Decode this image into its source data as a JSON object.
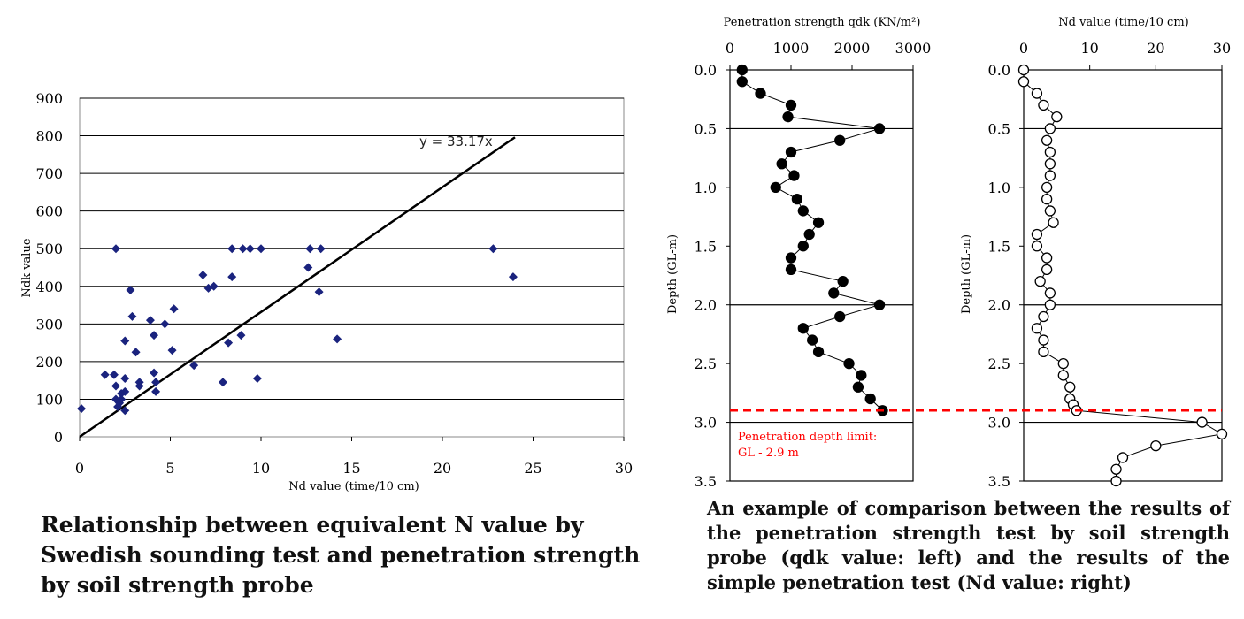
{
  "chart_data": [
    {
      "type": "scatter",
      "caption": "Relationship between equivalent N value by Swedish sounding test and penetration strength by soil strength probe",
      "xlabel": "Nd value (time/10 cm)",
      "ylabel": "Ndk value",
      "xlim": [
        0,
        30
      ],
      "ylim": [
        0,
        900
      ],
      "xticks": [
        "0",
        "5",
        "10",
        "15",
        "20",
        "25",
        "30"
      ],
      "yticks": [
        "0",
        "100",
        "200",
        "300",
        "400",
        "500",
        "600",
        "700",
        "800",
        "900"
      ],
      "grid": "horizontal",
      "trendline": {
        "label": "y = 33.17x",
        "slope": 33.17,
        "x_end": 24
      },
      "marker_color": "#1a237e",
      "points": [
        [
          0.1,
          75
        ],
        [
          1.4,
          165
        ],
        [
          1.9,
          165
        ],
        [
          2.0,
          500
        ],
        [
          2.0,
          135
        ],
        [
          2.0,
          100
        ],
        [
          2.1,
          80
        ],
        [
          2.2,
          90
        ],
        [
          2.3,
          115
        ],
        [
          2.3,
          100
        ],
        [
          2.5,
          70
        ],
        [
          2.5,
          155
        ],
        [
          2.5,
          120
        ],
        [
          2.5,
          255
        ],
        [
          2.8,
          390
        ],
        [
          2.9,
          320
        ],
        [
          3.1,
          225
        ],
        [
          3.3,
          145
        ],
        [
          3.3,
          135
        ],
        [
          3.9,
          310
        ],
        [
          4.1,
          270
        ],
        [
          4.1,
          170
        ],
        [
          4.2,
          145
        ],
        [
          4.2,
          120
        ],
        [
          4.7,
          300
        ],
        [
          5.1,
          230
        ],
        [
          5.2,
          340
        ],
        [
          6.3,
          190
        ],
        [
          6.8,
          430
        ],
        [
          7.1,
          395
        ],
        [
          7.4,
          400
        ],
        [
          7.9,
          145
        ],
        [
          8.2,
          250
        ],
        [
          8.4,
          425
        ],
        [
          8.4,
          500
        ],
        [
          8.9,
          270
        ],
        [
          9.0,
          500
        ],
        [
          9.4,
          500
        ],
        [
          9.8,
          155
        ],
        [
          10.0,
          500
        ],
        [
          12.6,
          450
        ],
        [
          12.7,
          500
        ],
        [
          13.2,
          385
        ],
        [
          13.3,
          500
        ],
        [
          14.2,
          260
        ],
        [
          22.8,
          500
        ],
        [
          23.9,
          425
        ]
      ]
    },
    {
      "type": "line",
      "title": "Penetration strength qdk (KN/m²)",
      "ylabel": "Depth (GL-m)",
      "xlim": [
        0,
        3000
      ],
      "ylim": [
        3.5,
        0
      ],
      "xticks": [
        "0",
        "1000",
        "2000",
        "3000"
      ],
      "yticks": [
        "0.0",
        "0.5",
        "1.0",
        "1.5",
        "2.0",
        "2.5",
        "3.0",
        "3.5"
      ],
      "marker": "filled",
      "x": [
        200,
        200,
        500,
        1000,
        950,
        2450,
        1800,
        1000,
        850,
        1050,
        750,
        1100,
        1200,
        1450,
        1300,
        1200,
        1000,
        1000,
        1850,
        1700,
        2450,
        1800,
        1200,
        1350,
        1450,
        1950,
        2150,
        2100,
        2300,
        2500
      ],
      "y": [
        0.0,
        0.1,
        0.2,
        0.3,
        0.4,
        0.5,
        0.6,
        0.7,
        0.8,
        0.9,
        1.0,
        1.1,
        1.2,
        1.3,
        1.4,
        1.5,
        1.6,
        1.7,
        1.8,
        1.9,
        2.0,
        2.1,
        2.2,
        2.3,
        2.4,
        2.5,
        2.6,
        2.7,
        2.8,
        2.9
      ],
      "limit_line": {
        "depth": 2.9,
        "color": "#ff0000",
        "label_line1": "Penetration depth limit:",
        "label_line2": "GL - 2.9 m"
      }
    },
    {
      "type": "line",
      "title": "Nd value (time/10 cm)",
      "ylabel": "Depth (GL-m)",
      "xlim": [
        0,
        30
      ],
      "ylim": [
        3.5,
        0
      ],
      "xticks": [
        "0",
        "10",
        "20",
        "30"
      ],
      "yticks": [
        "0.0",
        "0.5",
        "1.0",
        "1.5",
        "2.0",
        "2.5",
        "3.0",
        "3.5"
      ],
      "marker": "open",
      "x": [
        0,
        0,
        2,
        3,
        5,
        4,
        3.5,
        4,
        4,
        4,
        3.5,
        3.5,
        4,
        4.5,
        2,
        2,
        3.5,
        3.5,
        2.5,
        4,
        4,
        3,
        2,
        3,
        3,
        6,
        6,
        7,
        7,
        7.5,
        8,
        27,
        30,
        20,
        15,
        14,
        14
      ],
      "y": [
        0.0,
        0.1,
        0.2,
        0.3,
        0.4,
        0.5,
        0.6,
        0.7,
        0.8,
        0.9,
        1.0,
        1.1,
        1.2,
        1.3,
        1.4,
        1.5,
        1.6,
        1.7,
        1.8,
        1.9,
        2.0,
        2.1,
        2.2,
        2.3,
        2.4,
        2.5,
        2.6,
        2.7,
        2.8,
        2.85,
        2.9,
        3.0,
        3.1,
        3.2,
        3.3,
        3.4,
        3.5
      ],
      "limit_line": {
        "depth": 2.9,
        "color": "#ff0000"
      }
    }
  ],
  "captions": {
    "left": "Relationship between equivalent N value by Swedish sounding test and penetration strength by soil strength probe",
    "right": "An example of comparison between the results of the penetration strength test by soil strength probe (qdk value: left) and the results of the simple penetration test (Nd value: right)"
  }
}
